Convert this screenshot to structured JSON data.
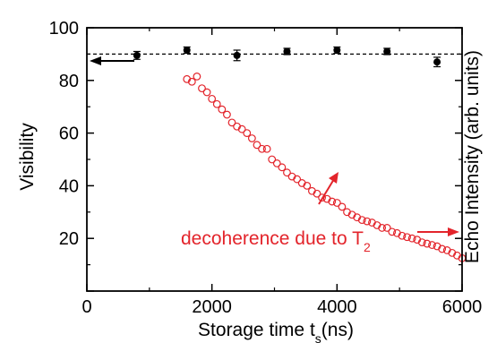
{
  "chart_data": {
    "type": "scatter",
    "xlabel": {
      "main": "Storage time t",
      "sub": "s",
      "unit": "(ns)"
    },
    "ylabel_left": "Visibility",
    "ylabel_right": "Echo Intensity (arb. units)",
    "xlim": [
      0,
      6000
    ],
    "ylim": [
      0,
      100
    ],
    "x_ticks": [
      0,
      2000,
      4000,
      6000
    ],
    "x_tick_labels": [
      "0",
      "2000",
      "4000",
      "6000"
    ],
    "y_ticks": [
      20,
      40,
      60,
      80,
      100
    ],
    "y_tick_labels": [
      "20",
      "40",
      "60",
      "80",
      "100"
    ],
    "reference_line_y": 90,
    "annotation": {
      "text": "decoherence due to T",
      "sub": "2"
    },
    "colors": {
      "visibility": "#000000",
      "echo": "#e3242b"
    },
    "series": [
      {
        "axis": "left",
        "marker": "filled-circle",
        "x": [
          800,
          1600,
          2400,
          3200,
          4000,
          4800,
          5600
        ],
        "y": [
          89.5,
          91.5,
          89.5,
          91.0,
          91.5,
          91.0,
          87.0
        ],
        "err": [
          1.5,
          1.2,
          2.0,
          1.2,
          1.2,
          1.2,
          1.8
        ]
      },
      {
        "axis": "right",
        "marker": "open-circle",
        "x": [
          1600,
          1680,
          1760,
          1840,
          1920,
          2000,
          2080,
          2160,
          2240,
          2320,
          2400,
          2480,
          2560,
          2640,
          2720,
          2800,
          2880,
          2960,
          3040,
          3120,
          3200,
          3280,
          3360,
          3440,
          3520,
          3600,
          3680,
          3760,
          3840,
          3920,
          4000,
          4080,
          4160,
          4240,
          4320,
          4400,
          4480,
          4560,
          4640,
          4720,
          4800,
          4880,
          4960,
          5040,
          5120,
          5200,
          5280,
          5360,
          5440,
          5520,
          5600,
          5680,
          5760,
          5840,
          5920,
          6000
        ],
        "y": [
          80.5,
          79.5,
          81.5,
          77,
          75.5,
          73,
          71,
          69,
          67,
          64,
          62.5,
          61.5,
          60,
          58,
          55.5,
          54,
          54,
          50,
          48.5,
          47,
          45,
          43.5,
          42.5,
          41,
          40,
          38,
          37,
          35.5,
          35,
          34,
          33.5,
          32,
          30,
          29,
          28,
          27,
          26.5,
          26,
          25,
          24,
          24,
          22.5,
          22,
          21,
          20.5,
          20,
          19.5,
          18.5,
          18,
          17.5,
          17,
          16,
          15.5,
          14.5,
          13.5,
          12.5
        ]
      }
    ]
  }
}
